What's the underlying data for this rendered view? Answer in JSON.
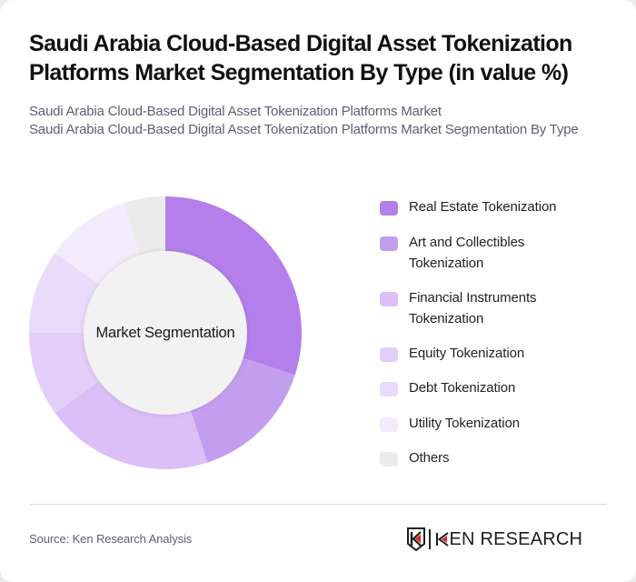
{
  "header": {
    "title": "Saudi Arabia Cloud-Based Digital Asset Tokenization Platforms Market Segmentation By Type (in value %)",
    "subtitle_line1": "Saudi Arabia Cloud-Based Digital Asset Tokenization Platforms Market",
    "subtitle_line2": "Saudi Arabia Cloud-Based Digital Asset Tokenization Platforms Market Segmentation By Type"
  },
  "chart": {
    "center_label": "Market Segmentation",
    "legend": [
      {
        "label": "Real Estate Tokenization",
        "color": "#b47fea"
      },
      {
        "label": "Art and Collectibles Tokenization",
        "color": "#c49eee"
      },
      {
        "label": "Financial Instruments Tokenization",
        "color": "#dbbff6"
      },
      {
        "label": "Equity Tokenization",
        "color": "#e2cef8"
      },
      {
        "label": "Debt Tokenization",
        "color": "#e8dcfa"
      },
      {
        "label": "Utility Tokenization",
        "color": "#f2ebfc"
      },
      {
        "label": "Others",
        "color": "#ebebeb"
      }
    ]
  },
  "chart_data": {
    "type": "pie",
    "subtype": "donut",
    "title": "Saudi Arabia Cloud-Based Digital Asset Tokenization Platforms Market Segmentation By Type (in value %)",
    "center_label": "Market Segmentation",
    "categories": [
      "Real Estate Tokenization",
      "Art and Collectibles Tokenization",
      "Financial Instruments Tokenization",
      "Equity Tokenization",
      "Debt Tokenization",
      "Utility Tokenization",
      "Others"
    ],
    "values": [
      30,
      15,
      20,
      10,
      10,
      10,
      5
    ],
    "colors": [
      "#b47fea",
      "#c49eee",
      "#dbbff6",
      "#e2cef8",
      "#e8dcfa",
      "#f2ebfc",
      "#ebebeb"
    ],
    "unit": "%",
    "legend_position": "right",
    "start_angle": "top, clockwise"
  },
  "footer": {
    "source": "Source: Ken Research Analysis",
    "brand_name": "KEN RESEARCH",
    "brand_accent": "#e0262b"
  }
}
